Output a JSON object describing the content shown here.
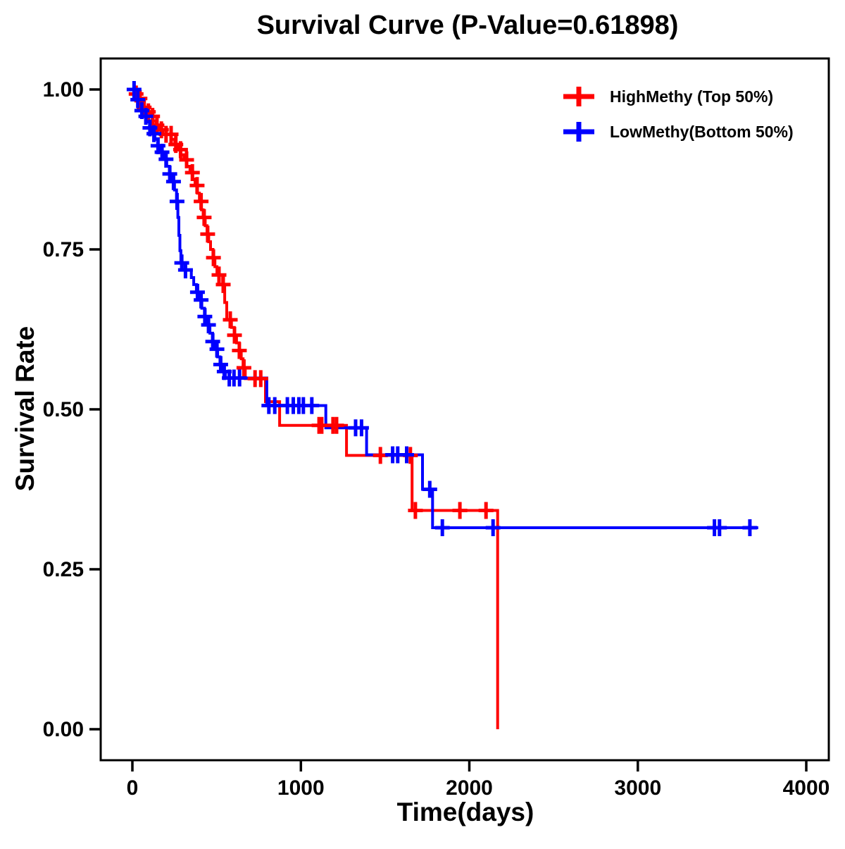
{
  "page": {
    "background": "#ffffff",
    "foreground": "#000000"
  },
  "chart": {
    "title": "Survival Curve (P-Value=0.61898)",
    "x_axis": {
      "label": "Time(days)",
      "tick_labels": [
        "0",
        "1000",
        "2000",
        "3000",
        "4000"
      ],
      "tick_values": [
        0,
        1000,
        2000,
        3000,
        4000
      ]
    },
    "y_axis": {
      "label": "Survival Rate",
      "tick_labels": [
        "0.00",
        "0.25",
        "0.50",
        "0.75",
        "1.00"
      ],
      "tick_values": [
        0,
        0.25,
        0.5,
        0.75,
        1
      ]
    },
    "legend": {
      "items": [
        {
          "label": "HighMethy (Top 50%)",
          "color": "#ff0000",
          "marker": "plus"
        },
        {
          "label": "LowMethy(Bottom 50%)",
          "color": "#0000ff",
          "marker": "plus"
        }
      ]
    }
  },
  "chart_data": {
    "type": "line",
    "subtype": "kaplan_meier_step",
    "title": "Survival Curve (P-Value=0.61898)",
    "p_value_text": "P-Value=0.61898",
    "xlabel": "Time(days)",
    "ylabel": "Survival Rate",
    "xlim": [
      -188,
      4134
    ],
    "ylim": [
      -0.048,
      1.048
    ],
    "grid": false,
    "legend_position": "top-right-inside",
    "series": [
      {
        "name": "HighMethy (Top 50%)",
        "color": "#ff0000",
        "steps": [
          [
            0,
            1.0
          ],
          [
            16,
            0.993
          ],
          [
            33,
            0.986
          ],
          [
            50,
            0.979
          ],
          [
            68,
            0.972
          ],
          [
            86,
            0.965
          ],
          [
            104,
            0.958
          ],
          [
            122,
            0.951
          ],
          [
            140,
            0.944
          ],
          [
            158,
            0.937
          ],
          [
            180,
            0.93
          ],
          [
            232,
            0.922
          ],
          [
            252,
            0.914
          ],
          [
            270,
            0.906
          ],
          [
            288,
            0.898
          ],
          [
            306,
            0.89
          ],
          [
            324,
            0.88
          ],
          [
            342,
            0.87
          ],
          [
            358,
            0.86
          ],
          [
            372,
            0.85
          ],
          [
            386,
            0.838
          ],
          [
            398,
            0.825
          ],
          [
            410,
            0.812
          ],
          [
            420,
            0.8
          ],
          [
            432,
            0.787
          ],
          [
            443,
            0.774
          ],
          [
            453,
            0.762
          ],
          [
            464,
            0.75
          ],
          [
            478,
            0.737
          ],
          [
            490,
            0.723
          ],
          [
            502,
            0.71
          ],
          [
            536,
            0.695
          ],
          [
            548,
            0.667
          ],
          [
            560,
            0.64
          ],
          [
            588,
            0.628
          ],
          [
            605,
            0.616
          ],
          [
            618,
            0.604
          ],
          [
            634,
            0.592
          ],
          [
            646,
            0.579
          ],
          [
            657,
            0.565
          ],
          [
            670,
            0.548
          ],
          [
            790,
            0.512
          ],
          [
            874,
            0.475
          ],
          [
            1271,
            0.428
          ],
          [
            1660,
            0.342
          ],
          [
            2168,
            0.0
          ]
        ],
        "censor_times": [
          22,
          45,
          70,
          95,
          120,
          146,
          172,
          200,
          230,
          258,
          286,
          322,
          356,
          384,
          408,
          426,
          447,
          481,
          514,
          539,
          581,
          606,
          635,
          662,
          728,
          762,
          1108,
          1124,
          1191,
          1212,
          1472,
          1650,
          1680,
          1944,
          2099
        ],
        "end_time": 2168,
        "ends_with_drop_to_zero": true
      },
      {
        "name": "LowMethy(Bottom 50%)",
        "color": "#0000ff",
        "steps": [
          [
            0,
            1.0
          ],
          [
            12,
            0.992
          ],
          [
            26,
            0.984
          ],
          [
            40,
            0.976
          ],
          [
            55,
            0.967
          ],
          [
            70,
            0.958
          ],
          [
            86,
            0.949
          ],
          [
            102,
            0.94
          ],
          [
            118,
            0.931
          ],
          [
            134,
            0.922
          ],
          [
            150,
            0.912
          ],
          [
            168,
            0.902
          ],
          [
            186,
            0.891
          ],
          [
            204,
            0.88
          ],
          [
            220,
            0.868
          ],
          [
            236,
            0.856
          ],
          [
            250,
            0.843
          ],
          [
            262,
            0.825
          ],
          [
            270,
            0.8
          ],
          [
            276,
            0.772
          ],
          [
            282,
            0.748
          ],
          [
            288,
            0.729
          ],
          [
            312,
            0.718
          ],
          [
            350,
            0.706
          ],
          [
            364,
            0.695
          ],
          [
            380,
            0.683
          ],
          [
            396,
            0.671
          ],
          [
            412,
            0.658
          ],
          [
            428,
            0.645
          ],
          [
            444,
            0.632
          ],
          [
            460,
            0.619
          ],
          [
            476,
            0.606
          ],
          [
            492,
            0.594
          ],
          [
            506,
            0.582
          ],
          [
            520,
            0.57
          ],
          [
            534,
            0.559
          ],
          [
            552,
            0.549
          ],
          [
            798,
            0.506
          ],
          [
            1148,
            0.471
          ],
          [
            1390,
            0.429
          ],
          [
            1722,
            0.375
          ],
          [
            1782,
            0.315
          ]
        ],
        "censor_times": [
          10,
          32,
          56,
          80,
          104,
          128,
          152,
          176,
          200,
          222,
          244,
          265,
          293,
          315,
          386,
          408,
          430,
          452,
          477,
          502,
          524,
          545,
          575,
          603,
          636,
          810,
          845,
          920,
          955,
          988,
          1015,
          1065,
          1325,
          1360,
          1545,
          1575,
          1628,
          1765,
          1840,
          2141,
          3455,
          3485,
          3665
        ],
        "end_time": 3715,
        "ends_with_drop_to_zero": false
      }
    ]
  }
}
